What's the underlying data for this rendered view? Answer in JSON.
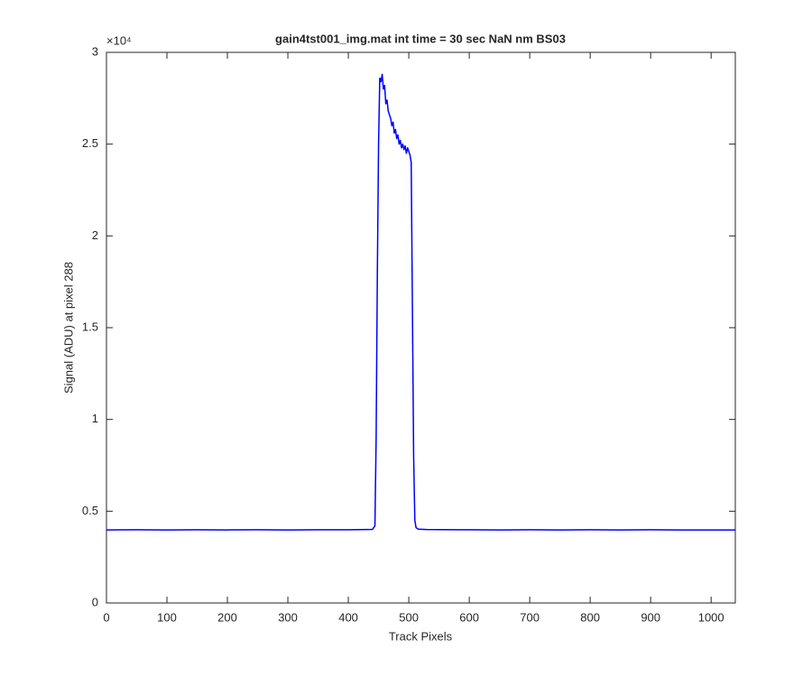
{
  "chart_data": {
    "type": "line",
    "title": "gain4tst001_img.mat int time = 30 sec  NaN nm BS03",
    "x_label": "Track Pixels",
    "y_label": "Signal (ADU) at pixel 288",
    "y_exponent_label": "×10⁴",
    "x": [
      0,
      50,
      100,
      150,
      200,
      250,
      300,
      350,
      400,
      430,
      440,
      444,
      446,
      448,
      450,
      452,
      454,
      456,
      458,
      460,
      462,
      464,
      466,
      468,
      470,
      472,
      474,
      476,
      478,
      480,
      482,
      484,
      486,
      488,
      490,
      492,
      494,
      496,
      498,
      500,
      502,
      504,
      506,
      508,
      510,
      512,
      516,
      530,
      600,
      650,
      700,
      750,
      800,
      850,
      900,
      950,
      1000,
      1040
    ],
    "series": [
      {
        "name": "signal",
        "color": "#0000ff",
        "values": [
          0.398,
          0.399,
          0.398,
          0.399,
          0.398,
          0.399,
          0.398,
          0.399,
          0.399,
          0.4,
          0.401,
          0.42,
          0.9,
          1.8,
          2.5,
          2.86,
          2.84,
          2.88,
          2.8,
          2.82,
          2.72,
          2.74,
          2.68,
          2.66,
          2.64,
          2.6,
          2.62,
          2.56,
          2.58,
          2.53,
          2.55,
          2.5,
          2.52,
          2.48,
          2.5,
          2.47,
          2.49,
          2.45,
          2.48,
          2.46,
          2.44,
          2.4,
          1.6,
          0.8,
          0.45,
          0.41,
          0.402,
          0.4,
          0.399,
          0.398,
          0.399,
          0.398,
          0.399,
          0.398,
          0.399,
          0.398,
          0.398,
          0.398
        ]
      }
    ],
    "xlim": [
      0,
      1040
    ],
    "xticks": [
      0,
      100,
      200,
      300,
      400,
      500,
      600,
      700,
      800,
      900,
      1000
    ],
    "ylim": [
      0,
      3
    ],
    "yticks": [
      0,
      0.5,
      1,
      1.5,
      2,
      2.5,
      3
    ],
    "grid": false
  }
}
